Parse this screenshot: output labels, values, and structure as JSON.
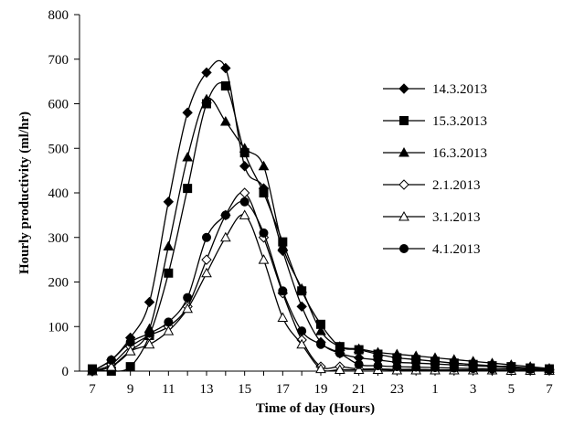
{
  "chart_data": {
    "type": "line",
    "title": "",
    "xlabel": "Time of day (Hours)",
    "ylabel": "Hourly productivity (ml/hr)",
    "ylim": [
      0,
      800
    ],
    "yticks": [
      0,
      100,
      200,
      300,
      400,
      500,
      600,
      700,
      800
    ],
    "x_hours": [
      7,
      8,
      9,
      10,
      11,
      12,
      13,
      14,
      15,
      16,
      17,
      18,
      19,
      20,
      21,
      22,
      23,
      24,
      25,
      26,
      27,
      28,
      29,
      30,
      31
    ],
    "xtick_hours": [
      7,
      9,
      11,
      13,
      15,
      17,
      19,
      21,
      23,
      25,
      27,
      29,
      31
    ],
    "xtick_labels": [
      "7",
      "9",
      "11",
      "13",
      "15",
      "17",
      "19",
      "21",
      "23",
      "1",
      "3",
      "5",
      "7"
    ],
    "grid": false,
    "legend_position": "right",
    "series": [
      {
        "name": "14.3.2013",
        "marker": "diamond",
        "filled": true,
        "values": [
          0,
          25,
          75,
          155,
          380,
          580,
          670,
          680,
          460,
          410,
          270,
          145,
          65,
          40,
          30,
          25,
          20,
          18,
          16,
          14,
          12,
          10,
          8,
          6,
          4
        ]
      },
      {
        "name": "15.3.2013",
        "marker": "square",
        "filled": true,
        "values": [
          5,
          0,
          10,
          80,
          220,
          410,
          600,
          640,
          490,
          400,
          290,
          180,
          105,
          55,
          48,
          38,
          30,
          26,
          22,
          18,
          15,
          12,
          10,
          7,
          5
        ]
      },
      {
        "name": "16.3.2013",
        "marker": "triangle",
        "filled": true,
        "values": [
          0,
          10,
          45,
          95,
          280,
          480,
          610,
          560,
          500,
          460,
          280,
          185,
          90,
          55,
          50,
          42,
          38,
          34,
          30,
          26,
          22,
          18,
          14,
          10,
          6
        ]
      },
      {
        "name": "2.1.2013",
        "marker": "diamond",
        "filled": false,
        "values": [
          0,
          15,
          55,
          80,
          100,
          145,
          250,
          350,
          400,
          300,
          175,
          70,
          10,
          10,
          5,
          5,
          4,
          4,
          3,
          3,
          3,
          2,
          2,
          2,
          2
        ]
      },
      {
        "name": "3.1.2013",
        "marker": "triangle",
        "filled": false,
        "values": [
          0,
          10,
          45,
          60,
          90,
          140,
          220,
          300,
          350,
          250,
          120,
          60,
          5,
          3,
          3,
          3,
          2,
          2,
          2,
          2,
          2,
          2,
          1,
          1,
          1
        ]
      },
      {
        "name": "4.1.2013",
        "marker": "circle",
        "filled": true,
        "values": [
          0,
          25,
          65,
          85,
          110,
          165,
          300,
          350,
          380,
          310,
          180,
          90,
          60,
          40,
          15,
          12,
          10,
          9,
          8,
          7,
          6,
          5,
          5,
          4,
          3
        ]
      }
    ]
  }
}
